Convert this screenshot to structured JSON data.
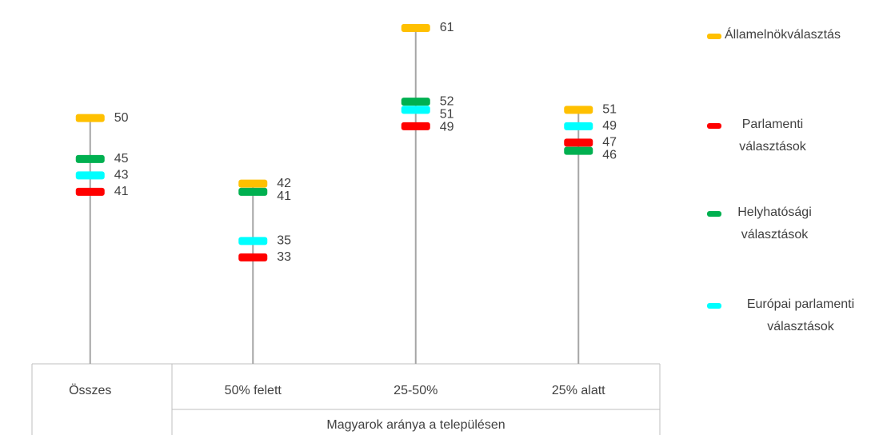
{
  "chart_data": {
    "type": "dot",
    "categories": [
      "Összes",
      "50% felett",
      "25-50%",
      "25% alatt"
    ],
    "group_label": "Magyarok aránya a településen",
    "series": [
      {
        "name": "Államelnökválasztás",
        "color": "#FFC000",
        "values": [
          50,
          42,
          61,
          51
        ]
      },
      {
        "name": "Parlamenti választások",
        "color": "#FF0000",
        "values": [
          41,
          33,
          49,
          47
        ]
      },
      {
        "name": "Helyhatósági választások",
        "color": "#00B050",
        "values": [
          45,
          41,
          52,
          46
        ]
      },
      {
        "name": "Európai parlamenti választások",
        "color": "#00FFFF",
        "values": [
          43,
          35,
          51,
          49
        ]
      }
    ],
    "ylim": [
      20,
      65
    ]
  }
}
